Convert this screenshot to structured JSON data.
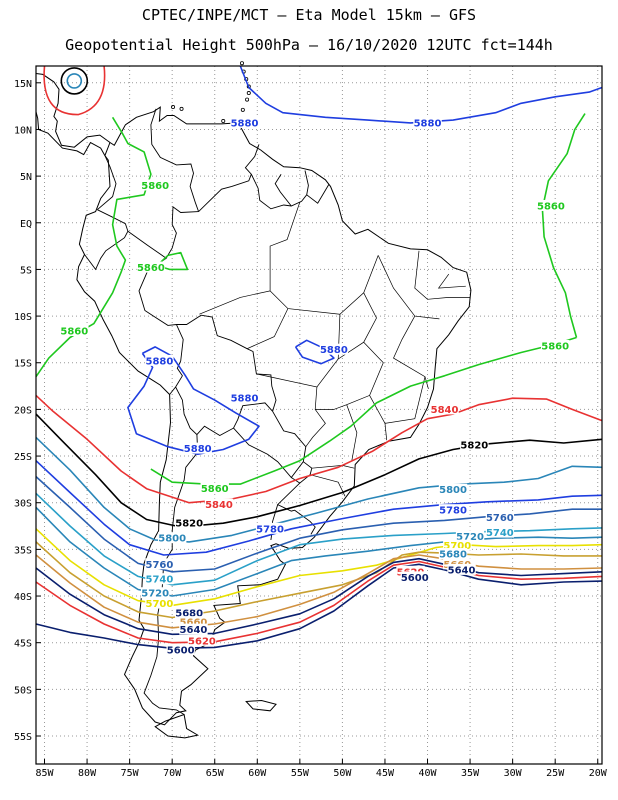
{
  "header": {
    "line1": "CPTEC/INPE/MCT –  Eta Model 15km – GFS",
    "line2": "Geopotential Height 500hPa – 16/10/2020 12UTC fct=144h"
  },
  "axes": {
    "y_ticks": [
      "15N",
      "10N",
      "5N",
      "EQ",
      "5S",
      "10S",
      "15S",
      "20S",
      "25S",
      "30S",
      "35S",
      "40S",
      "45S",
      "50S",
      "55S"
    ],
    "x_ticks": [
      "85W",
      "80W",
      "75W",
      "70W",
      "65W",
      "60W",
      "55W",
      "50W",
      "45W",
      "40W",
      "35W",
      "30W",
      "25W",
      "20W"
    ]
  },
  "contours": [
    {
      "level": "5880",
      "color": "#1f3ee0"
    },
    {
      "level": "5860",
      "color": "#1fc81f"
    },
    {
      "level": "5840",
      "color": "#e83232"
    },
    {
      "level": "5820",
      "color": "#000000"
    },
    {
      "level": "5800",
      "color": "#2a86b8"
    },
    {
      "level": "5780",
      "color": "#1f3ee0"
    },
    {
      "level": "5760",
      "color": "#2a5fb0"
    },
    {
      "level": "5740",
      "color": "#2aa0c8"
    },
    {
      "level": "5720",
      "color": "#2a86b8"
    },
    {
      "level": "5700",
      "color": "#e8e000"
    },
    {
      "level": "5680",
      "color": "#c8a030"
    },
    {
      "level": "5660",
      "color": "#d09040"
    },
    {
      "level": "5640",
      "color": "#0a1f6e"
    },
    {
      "level": "5620",
      "color": "#e83232"
    },
    {
      "level": "5600",
      "color": "#0a1f6e"
    }
  ],
  "labels": [
    {
      "text": "5880",
      "color": "#1f3ee0",
      "lon": -61.5,
      "lat": 10.7
    },
    {
      "text": "5880",
      "color": "#1f3ee0",
      "lon": -40,
      "lat": 10.7
    },
    {
      "text": "5860",
      "color": "#1fc81f",
      "lon": -72,
      "lat": 4
    },
    {
      "text": "5860",
      "color": "#1fc81f",
      "lon": -25.5,
      "lat": 1.8
    },
    {
      "text": "5860",
      "color": "#1fc81f",
      "lon": -72.5,
      "lat": -4.8
    },
    {
      "text": "5860",
      "color": "#1fc81f",
      "lon": -81.5,
      "lat": -11.6
    },
    {
      "text": "5860",
      "color": "#1fc81f",
      "lon": -25,
      "lat": -13.2
    },
    {
      "text": "5860",
      "color": "#1fc81f",
      "lon": -65,
      "lat": -28.5
    },
    {
      "text": "5880",
      "color": "#1f3ee0",
      "lon": -71.5,
      "lat": -14.8
    },
    {
      "text": "5880",
      "color": "#1f3ee0",
      "lon": -51,
      "lat": -13.6
    },
    {
      "text": "5880",
      "color": "#1f3ee0",
      "lon": -61.5,
      "lat": -18.8
    },
    {
      "text": "5880",
      "color": "#1f3ee0",
      "lon": -67,
      "lat": -24.2
    },
    {
      "text": "5840",
      "color": "#e83232",
      "lon": -38,
      "lat": -20
    },
    {
      "text": "5840",
      "color": "#e83232",
      "lon": -64.5,
      "lat": -30.2
    },
    {
      "text": "5820",
      "color": "#000000",
      "lon": -34.5,
      "lat": -23.8
    },
    {
      "text": "5820",
      "color": "#000000",
      "lon": -68,
      "lat": -32.2
    },
    {
      "text": "5800",
      "color": "#2a86b8",
      "lon": -37,
      "lat": -28.6
    },
    {
      "text": "5800",
      "color": "#2a86b8",
      "lon": -70,
      "lat": -33.8
    },
    {
      "text": "5780",
      "color": "#1f3ee0",
      "lon": -37,
      "lat": -30.8
    },
    {
      "text": "5780",
      "color": "#1f3ee0",
      "lon": -58.5,
      "lat": -32.8
    },
    {
      "text": "5760",
      "color": "#2a5fb0",
      "lon": -31.5,
      "lat": -31.6
    },
    {
      "text": "5760",
      "color": "#2a5fb0",
      "lon": -71.5,
      "lat": -36.6
    },
    {
      "text": "5740",
      "color": "#2aa0c8",
      "lon": -31.5,
      "lat": -33.2
    },
    {
      "text": "5740",
      "color": "#2aa0c8",
      "lon": -71.5,
      "lat": -38.2
    },
    {
      "text": "5720",
      "color": "#2a86b8",
      "lon": -35,
      "lat": -33.6
    },
    {
      "text": "5720",
      "color": "#2a86b8",
      "lon": -72,
      "lat": -39.7
    },
    {
      "text": "5700",
      "color": "#e8e000",
      "lon": -36.5,
      "lat": -34.6
    },
    {
      "text": "5700",
      "color": "#e8e000",
      "lon": -71.5,
      "lat": -40.8
    },
    {
      "text": "5680",
      "color": "#2a86b8",
      "lon": -37,
      "lat": -35.5
    },
    {
      "text": "5680",
      "color": "#0a1f6e",
      "lon": -68,
      "lat": -41.8
    },
    {
      "text": "5660",
      "color": "#d09040",
      "lon": -36.5,
      "lat": -36.6
    },
    {
      "text": "5660",
      "color": "#d09040",
      "lon": -67.5,
      "lat": -42.8
    },
    {
      "text": "5640",
      "color": "#0a1f6e",
      "lon": -36,
      "lat": -37.2
    },
    {
      "text": "5640",
      "color": "#0a1f6e",
      "lon": -67.5,
      "lat": -43.6
    },
    {
      "text": "5620",
      "color": "#e83232",
      "lon": -42,
      "lat": -37.4
    },
    {
      "text": "5620",
      "color": "#e83232",
      "lon": -66.5,
      "lat": -44.8
    },
    {
      "text": "5600",
      "color": "#0a1f6e",
      "lon": -41.5,
      "lat": -38
    },
    {
      "text": "5600",
      "color": "#0a1f6e",
      "lon": -69,
      "lat": -45.8
    }
  ]
}
